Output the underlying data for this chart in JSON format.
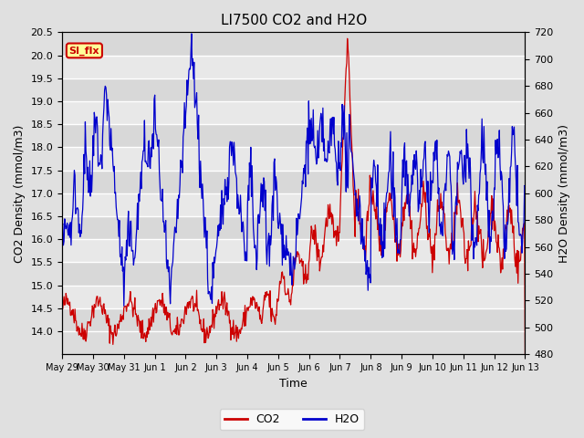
{
  "title": "LI7500 CO2 and H2O",
  "xlabel": "Time",
  "ylabel_left": "CO2 Density (mmol/m3)",
  "ylabel_right": "H2O Density (mmol/m3)",
  "ylim_left": [
    13.5,
    20.5
  ],
  "ylim_right": [
    480,
    720
  ],
  "yticks_left": [
    14.0,
    14.5,
    15.0,
    15.5,
    16.0,
    16.5,
    17.0,
    17.5,
    18.0,
    18.5,
    19.0,
    19.5,
    20.0,
    20.5
  ],
  "yticks_right": [
    480,
    500,
    520,
    540,
    560,
    580,
    600,
    620,
    640,
    660,
    680,
    700,
    720
  ],
  "xtick_labels": [
    "May 29",
    "May 30",
    "May 31",
    "Jun 1",
    "Jun 2",
    "Jun 3",
    "Jun 4",
    "Jun 5",
    "Jun 6",
    "Jun 7",
    "Jun 8",
    "Jun 9",
    "Jun 10",
    "Jun 11",
    "Jun 12",
    "Jun 13"
  ],
  "co2_color": "#CC0000",
  "h2o_color": "#0000CC",
  "fig_bg_color": "#E0E0E0",
  "plot_bg_light": "#DCDCDC",
  "plot_bg_dark": "#C8C8C8",
  "annotation_text": "SI_flx",
  "annotation_bg": "#FFFF99",
  "annotation_border": "#CC0000",
  "legend_co2": "CO2",
  "legend_h2o": "H2O",
  "grid_color": "white",
  "title_fontsize": 11,
  "label_fontsize": 9,
  "tick_fontsize": 8
}
